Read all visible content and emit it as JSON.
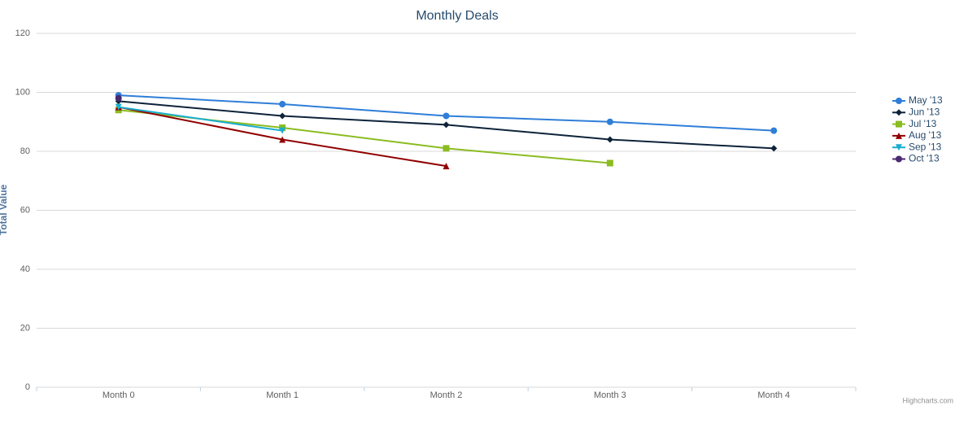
{
  "chart_data": {
    "type": "line",
    "title": "Monthly Deals",
    "y_label": "Total Value",
    "categories": [
      "Month 0",
      "Month 1",
      "Month 2",
      "Month 3",
      "Month 4"
    ],
    "series": [
      {
        "name": "May '13",
        "color": "#2f7ed8",
        "marker": "circle",
        "values": [
          99,
          96,
          92,
          90,
          87
        ]
      },
      {
        "name": "Jun '13",
        "color": "#0d233a",
        "marker": "diamond",
        "values": [
          97,
          92,
          89,
          84,
          81
        ]
      },
      {
        "name": "Jul '13",
        "color": "#8bbc21",
        "marker": "square",
        "values": [
          94,
          88,
          81,
          76,
          null
        ]
      },
      {
        "name": "Aug '13",
        "color": "#910000",
        "marker": "triangle",
        "values": [
          95,
          84,
          75,
          null,
          null
        ]
      },
      {
        "name": "Sep '13",
        "color": "#1aadce",
        "marker": "triangle-down",
        "values": [
          95,
          87,
          null,
          null,
          null
        ]
      },
      {
        "name": "Oct '13",
        "color": "#492970",
        "marker": "circle",
        "values": [
          98,
          null,
          null,
          null,
          null
        ]
      }
    ],
    "ylim": [
      0,
      120
    ],
    "yticks": [
      0,
      20,
      40,
      60,
      80,
      100,
      120
    ],
    "grid": true,
    "legend": "right",
    "credits": "Highcharts.com"
  }
}
